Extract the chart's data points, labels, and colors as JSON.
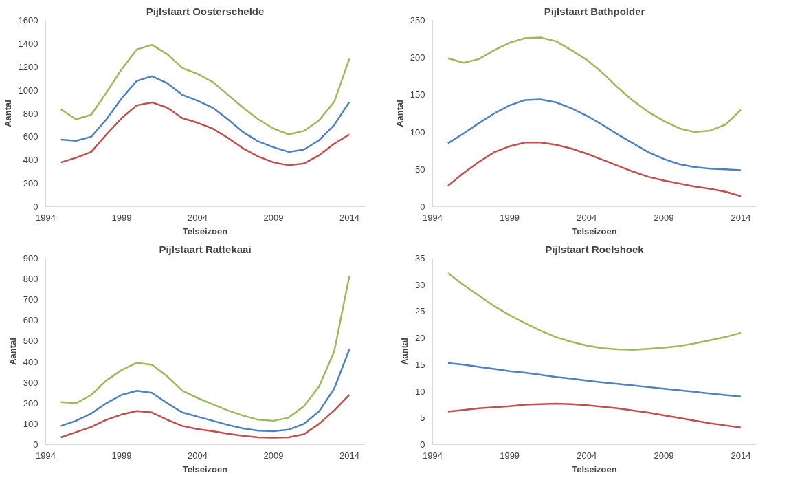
{
  "chart_data": [
    {
      "type": "line",
      "title": "Pijlstaart Oosterschelde",
      "xlabel": "Telseizoen",
      "ylabel": "Aantal",
      "x": [
        1995,
        1996,
        1997,
        1998,
        1999,
        2000,
        2001,
        2002,
        2003,
        2004,
        2005,
        2006,
        2007,
        2008,
        2009,
        2010,
        2011,
        2012,
        2013,
        2014
      ],
      "xlim": [
        1994,
        2015
      ],
      "xticks": [
        1994,
        1999,
        2004,
        2009,
        2014
      ],
      "ylim": [
        0,
        1600
      ],
      "yticks": [
        0,
        200,
        400,
        600,
        800,
        1000,
        1200,
        1400,
        1600
      ],
      "series": [
        {
          "color": "#9bbb59",
          "values": [
            835,
            750,
            790,
            980,
            1180,
            1350,
            1390,
            1310,
            1190,
            1140,
            1070,
            960,
            850,
            750,
            670,
            620,
            650,
            740,
            900,
            1270
          ]
        },
        {
          "color": "#4f81bd",
          "values": [
            575,
            565,
            600,
            750,
            930,
            1080,
            1120,
            1060,
            960,
            910,
            850,
            750,
            640,
            560,
            510,
            470,
            490,
            570,
            700,
            900
          ]
        },
        {
          "color": "#c0504d",
          "values": [
            380,
            420,
            470,
            620,
            760,
            870,
            895,
            850,
            760,
            720,
            670,
            590,
            500,
            430,
            380,
            355,
            370,
            440,
            540,
            620
          ]
        }
      ]
    },
    {
      "type": "line",
      "title": "Pijlstaart Bathpolder",
      "xlabel": "Telseizoen",
      "ylabel": "Aantal",
      "x": [
        1995,
        1996,
        1997,
        1998,
        1999,
        2000,
        2001,
        2002,
        2003,
        2004,
        2005,
        2006,
        2007,
        2008,
        2009,
        2010,
        2011,
        2012,
        2013,
        2014
      ],
      "xlim": [
        1994,
        2015
      ],
      "xticks": [
        1994,
        1999,
        2004,
        2009,
        2014
      ],
      "ylim": [
        0,
        250
      ],
      "yticks": [
        0,
        50,
        100,
        150,
        200,
        250
      ],
      "series": [
        {
          "color": "#9bbb59",
          "values": [
            199,
            193,
            198,
            210,
            220,
            226,
            227,
            222,
            210,
            197,
            180,
            160,
            142,
            127,
            115,
            105,
            100,
            102,
            110,
            130
          ]
        },
        {
          "color": "#4f81bd",
          "values": [
            85,
            98,
            112,
            125,
            136,
            143,
            144,
            140,
            132,
            122,
            110,
            97,
            85,
            73,
            64,
            57,
            53,
            51,
            50,
            49
          ]
        },
        {
          "color": "#c0504d",
          "values": [
            28,
            45,
            60,
            73,
            81,
            86,
            86,
            83,
            78,
            71,
            63,
            55,
            47,
            40,
            35,
            31,
            27,
            24,
            20,
            14
          ]
        }
      ]
    },
    {
      "type": "line",
      "title": "Pijlstaart Rattekaai",
      "xlabel": "Telseizoen",
      "ylabel": "Aantal",
      "x": [
        1995,
        1996,
        1997,
        1998,
        1999,
        2000,
        2001,
        2002,
        2003,
        2004,
        2005,
        2006,
        2007,
        2008,
        2009,
        2010,
        2011,
        2012,
        2013,
        2014
      ],
      "xlim": [
        1994,
        2015
      ],
      "xticks": [
        1994,
        1999,
        2004,
        2009,
        2014
      ],
      "ylim": [
        0,
        900
      ],
      "yticks": [
        0,
        100,
        200,
        300,
        400,
        500,
        600,
        700,
        800,
        900
      ],
      "series": [
        {
          "color": "#9bbb59",
          "values": [
            205,
            200,
            240,
            310,
            360,
            395,
            385,
            330,
            260,
            225,
            195,
            165,
            140,
            120,
            115,
            130,
            185,
            280,
            450,
            815
          ]
        },
        {
          "color": "#4f81bd",
          "values": [
            90,
            115,
            150,
            200,
            240,
            260,
            250,
            200,
            155,
            135,
            115,
            95,
            78,
            67,
            65,
            72,
            100,
            160,
            270,
            460
          ]
        },
        {
          "color": "#c0504d",
          "values": [
            35,
            60,
            85,
            120,
            145,
            162,
            155,
            120,
            90,
            75,
            65,
            52,
            42,
            35,
            33,
            35,
            50,
            100,
            165,
            240
          ]
        }
      ]
    },
    {
      "type": "line",
      "title": "Pijlstaart Roelshoek",
      "xlabel": "Telseizoen",
      "ylabel": "Aantal",
      "x": [
        1995,
        1996,
        1997,
        1998,
        1999,
        2000,
        2001,
        2002,
        2003,
        2004,
        2005,
        2006,
        2007,
        2008,
        2009,
        2010,
        2011,
        2012,
        2013,
        2014
      ],
      "xlim": [
        1994,
        2015
      ],
      "xticks": [
        1994,
        1999,
        2004,
        2009,
        2014
      ],
      "ylim": [
        0,
        35
      ],
      "yticks": [
        0,
        5,
        10,
        15,
        20,
        25,
        30,
        35
      ],
      "series": [
        {
          "color": "#9bbb59",
          "values": [
            32.2,
            30,
            28,
            26,
            24.3,
            22.8,
            21.4,
            20.2,
            19.3,
            18.6,
            18.1,
            17.9,
            17.8,
            18.0,
            18.2,
            18.5,
            19.0,
            19.6,
            20.2,
            21.0
          ]
        },
        {
          "color": "#4f81bd",
          "values": [
            15.3,
            15.0,
            14.6,
            14.2,
            13.8,
            13.5,
            13.1,
            12.7,
            12.4,
            12.0,
            11.7,
            11.4,
            11.1,
            10.8,
            10.5,
            10.2,
            9.9,
            9.6,
            9.3,
            9.0
          ]
        },
        {
          "color": "#c0504d",
          "values": [
            6.2,
            6.5,
            6.8,
            7.0,
            7.2,
            7.5,
            7.6,
            7.7,
            7.6,
            7.4,
            7.1,
            6.8,
            6.4,
            6.0,
            5.5,
            5.0,
            4.5,
            4.0,
            3.6,
            3.2
          ]
        }
      ]
    }
  ]
}
